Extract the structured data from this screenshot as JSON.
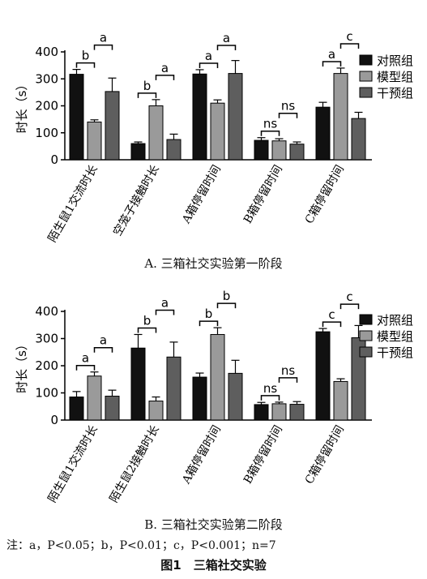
{
  "figure_title": "图1　三箱社交实验",
  "note": "注：a，P<0.05；b，P<0.01；c，P<0.001；n=7",
  "colors": {
    "control": "#111111",
    "model": "#9a9a9a",
    "intervention": "#5e5e5e"
  },
  "chart_data": [
    {
      "type": "bar",
      "caption": "A. 三箱社交实验第一阶段",
      "ylabel": "时长（s）",
      "ylim": [
        0,
        400
      ],
      "yticks": [
        0,
        100,
        200,
        300,
        400
      ],
      "categories": [
        "陌生鼠1交流时长",
        "空笼子接触时长",
        "A箱停留时间",
        "B箱停留时间",
        "C箱停留时间"
      ],
      "legend_position": "right",
      "series": [
        {
          "name": "对照组",
          "values": [
            317,
            60,
            318,
            72,
            195
          ],
          "errors": [
            18,
            6,
            16,
            10,
            18
          ]
        },
        {
          "name": "模型组",
          "values": [
            140,
            200,
            210,
            70,
            320
          ],
          "errors": [
            8,
            23,
            12,
            8,
            20
          ]
        },
        {
          "name": "干预组",
          "values": [
            253,
            75,
            320,
            58,
            153
          ],
          "errors": [
            50,
            20,
            48,
            8,
            23
          ]
        }
      ],
      "significance": [
        {
          "cat": 0,
          "from": 0,
          "to": 1,
          "label": "b",
          "level": 0
        },
        {
          "cat": 0,
          "from": 1,
          "to": 2,
          "label": "a",
          "level": 1
        },
        {
          "cat": 1,
          "from": 0,
          "to": 1,
          "label": "b",
          "level": 0
        },
        {
          "cat": 1,
          "from": 1,
          "to": 2,
          "label": "a",
          "level": 1
        },
        {
          "cat": 2,
          "from": 0,
          "to": 1,
          "label": "a",
          "level": 0
        },
        {
          "cat": 2,
          "from": 1,
          "to": 2,
          "label": "a",
          "level": 1
        },
        {
          "cat": 3,
          "from": 0,
          "to": 1,
          "label": "ns",
          "level": 0
        },
        {
          "cat": 3,
          "from": 1,
          "to": 2,
          "label": "ns",
          "level": 1
        },
        {
          "cat": 4,
          "from": 0,
          "to": 1,
          "label": "a",
          "level": 0
        },
        {
          "cat": 4,
          "from": 1,
          "to": 2,
          "label": "c",
          "level": 1
        }
      ]
    },
    {
      "type": "bar",
      "caption": "B. 三箱社交实验第二阶段",
      "ylabel": "时长（s）",
      "ylim": [
        0,
        400
      ],
      "yticks": [
        0,
        100,
        200,
        300,
        400
      ],
      "categories": [
        "陌生鼠1交流时长",
        "陌生鼠2接触时长",
        "A箱停留时间",
        "B箱停留时间",
        "C箱停留时间"
      ],
      "legend_position": "right",
      "series": [
        {
          "name": "对照组",
          "values": [
            85,
            265,
            158,
            57,
            325
          ],
          "errors": [
            20,
            50,
            15,
            8,
            12
          ]
        },
        {
          "name": "模型组",
          "values": [
            162,
            70,
            315,
            60,
            142
          ],
          "errors": [
            15,
            15,
            25,
            6,
            10
          ]
        },
        {
          "name": "干预组",
          "values": [
            88,
            232,
            172,
            58,
            303
          ],
          "errors": [
            22,
            55,
            48,
            10,
            45
          ]
        }
      ],
      "significance": [
        {
          "cat": 0,
          "from": 0,
          "to": 1,
          "label": "a",
          "level": 0
        },
        {
          "cat": 0,
          "from": 1,
          "to": 2,
          "label": "a",
          "level": 1
        },
        {
          "cat": 1,
          "from": 0,
          "to": 1,
          "label": "b",
          "level": 0
        },
        {
          "cat": 1,
          "from": 1,
          "to": 2,
          "label": "a",
          "level": 1
        },
        {
          "cat": 2,
          "from": 0,
          "to": 1,
          "label": "b",
          "level": 0
        },
        {
          "cat": 2,
          "from": 1,
          "to": 2,
          "label": "b",
          "level": 1
        },
        {
          "cat": 3,
          "from": 0,
          "to": 1,
          "label": "ns",
          "level": 0
        },
        {
          "cat": 3,
          "from": 1,
          "to": 2,
          "label": "ns",
          "level": 1
        },
        {
          "cat": 4,
          "from": 0,
          "to": 1,
          "label": "c",
          "level": 0
        },
        {
          "cat": 4,
          "from": 1,
          "to": 2,
          "label": "c",
          "level": 1
        }
      ]
    }
  ]
}
